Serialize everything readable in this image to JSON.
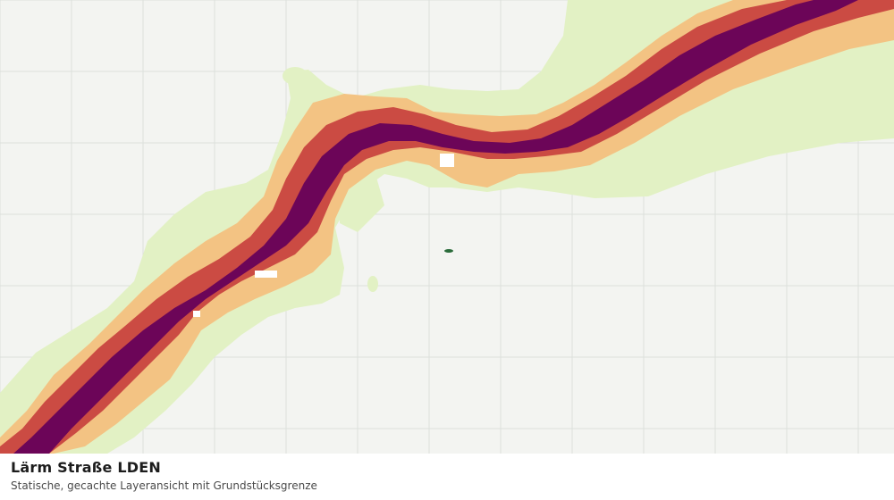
{
  "caption": {
    "title": "Lärm Straße LDEN",
    "subtitle": "Statische, gecachte Layeransicht mit Grundstücksgrenze"
  },
  "map": {
    "layer": "noise-road-lden",
    "band_colors": {
      "outer": "#e2f1c4",
      "mid": "#f3c383",
      "inner": "#cb4b43",
      "core": "#6c0558"
    },
    "grid_color": "#dde0dc",
    "background": "#f3f4f1",
    "parcel_marker_color": "#2a6b3a"
  }
}
